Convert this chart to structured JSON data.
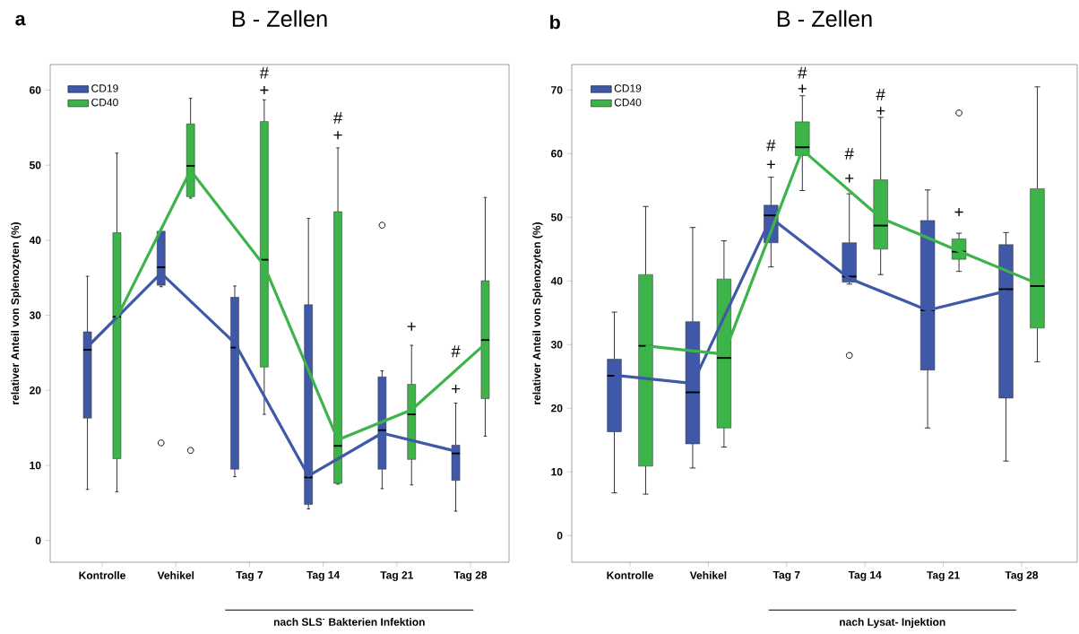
{
  "chart_data": [
    {
      "type": "box",
      "title": "B - Zellen",
      "ylabel": "relativer Anteil von Splenozyten (%)",
      "xlabel": "nach SLS$^{-}$ Bakterien Infektion",
      "categories": [
        "Kontrolle",
        "Vehikel",
        "Tag 7",
        "Tag 14",
        "Tag 21",
        "Tag 28"
      ],
      "ylim": [
        -2.9,
        63.4
      ],
      "yticks": [
        0,
        10,
        20,
        30,
        40,
        50,
        60
      ],
      "legend": "top left",
      "grid": false,
      "series": [
        {
          "name": "CD19",
          "color": "#3f58a8",
          "boxes": [
            {
              "low": 6.8,
              "q1": 16.3,
              "median": 25.4,
              "q3": 27.8,
              "high": 35.2
            },
            {
              "low": 33.8,
              "q1": 34.0,
              "median": 36.4,
              "q3": 41.2,
              "high": 41.5,
              "outliers": [
                13.0
              ]
            },
            {
              "low": 8.5,
              "q1": 9.5,
              "median": 25.7,
              "q3": 32.4,
              "high": 33.9
            },
            {
              "low": 4.2,
              "q1": 4.8,
              "median": 8.4,
              "q3": 31.4,
              "high": 42.9
            },
            {
              "low": 6.9,
              "q1": 9.5,
              "median": 14.7,
              "q3": 21.8,
              "high": 22.6,
              "outliers": [
                42.0
              ]
            },
            {
              "low": 3.9,
              "q1": 8.0,
              "median": 11.6,
              "q3": 12.7,
              "high": 18.3
            }
          ]
        },
        {
          "name": "CD40",
          "color": "#3cb44a",
          "boxes": [
            {
              "low": 6.5,
              "q1": 10.9,
              "median": 29.8,
              "q3": 41.0,
              "high": 51.6
            },
            {
              "low": 45.6,
              "q1": 45.8,
              "median": 49.9,
              "q3": 55.5,
              "high": 58.9,
              "outliers": [
                12.0
              ]
            },
            {
              "low": 16.8,
              "q1": 23.1,
              "median": 37.4,
              "q3": 55.8,
              "high": 58.7
            },
            {
              "low": 7.5,
              "q1": 7.6,
              "median": 12.6,
              "q3": 43.8,
              "high": 52.3
            },
            {
              "low": 7.4,
              "q1": 10.8,
              "median": 16.8,
              "q3": 20.8,
              "high": 26.0
            },
            {
              "low": 13.9,
              "q1": 18.9,
              "median": 26.7,
              "q3": 34.6,
              "high": 45.7
            }
          ]
        },
        {
          "type": "line",
          "color": "#3f58a8",
          "values": [
            25.8,
            35.6,
            26.3,
            8.6,
            14.3,
            11.9
          ]
        },
        {
          "type": "line",
          "color": "#3cb44a",
          "values": [
            29.7,
            49.3,
            36.6,
            13.4,
            17.4,
            26.2
          ]
        }
      ],
      "annotations": [
        "a",
        "#",
        "+",
        "#",
        "+",
        "+",
        "#",
        "+"
      ]
    },
    {
      "type": "box",
      "title": "B - Zellen",
      "ylabel": "relativer Anteil von Splenozyten (%)",
      "xlabel": "nach Lysat- Injektion",
      "categories": [
        "Kontrolle",
        "Vehikel",
        "Tag 7",
        "Tag 14",
        "Tag 21",
        "Tag 28"
      ],
      "ylim": [
        -4.2,
        74
      ],
      "yticks": [
        0,
        10,
        20,
        30,
        40,
        50,
        60,
        70
      ],
      "legend": "top left",
      "grid": false,
      "series": [
        {
          "name": "CD19",
          "color": "#3f58a8",
          "boxes": [
            {
              "low": 6.7,
              "q1": 16.3,
              "median": 25.1,
              "q3": 27.7,
              "high": 35.1
            },
            {
              "low": 10.6,
              "q1": 14.4,
              "median": 22.5,
              "q3": 33.6,
              "high": 48.4
            },
            {
              "low": 42.2,
              "q1": 46.0,
              "median": 50.3,
              "q3": 51.9,
              "high": 56.3
            },
            {
              "low": 39.5,
              "q1": 39.8,
              "median": 40.7,
              "q3": 46.0,
              "high": 53.7,
              "outliers": [
                28.3
              ]
            },
            {
              "low": 16.9,
              "q1": 26.0,
              "median": 35.4,
              "q3": 49.5,
              "high": 54.3
            },
            {
              "low": 11.7,
              "q1": 21.6,
              "median": 38.7,
              "q3": 45.7,
              "high": 47.6
            }
          ]
        },
        {
          "name": "CD40",
          "color": "#3cb44a",
          "boxes": [
            {
              "low": 6.5,
              "q1": 10.9,
              "median": 29.8,
              "q3": 41.0,
              "high": 51.7
            },
            {
              "low": 13.9,
              "q1": 16.9,
              "median": 27.9,
              "q3": 40.3,
              "high": 46.3
            },
            {
              "low": 54.2,
              "q1": 59.7,
              "median": 61.0,
              "q3": 65.0,
              "high": 69.1
            },
            {
              "low": 41.0,
              "q1": 45.0,
              "median": 48.7,
              "q3": 55.9,
              "high": 65.7
            },
            {
              "low": 41.5,
              "q1": 43.4,
              "median": 44.6,
              "q3": 46.6,
              "high": 47.5,
              "outliers": [
                66.4
              ]
            },
            {
              "low": 27.3,
              "q1": 32.6,
              "median": 39.2,
              "q3": 54.5,
              "high": 70.5
            }
          ]
        },
        {
          "type": "line",
          "color": "#3f58a8",
          "values": [
            25.2,
            23.9,
            49.9,
            40.4,
            35.4,
            38.4
          ]
        },
        {
          "type": "line",
          "color": "#3cb44a",
          "values": [
            29.8,
            28.5,
            60.6,
            49.9,
            44.7,
            39.6
          ]
        }
      ],
      "annotations": [
        "b",
        "#",
        "+",
        "#",
        "+",
        "#",
        "+",
        "#",
        "+",
        "+"
      ]
    }
  ]
}
